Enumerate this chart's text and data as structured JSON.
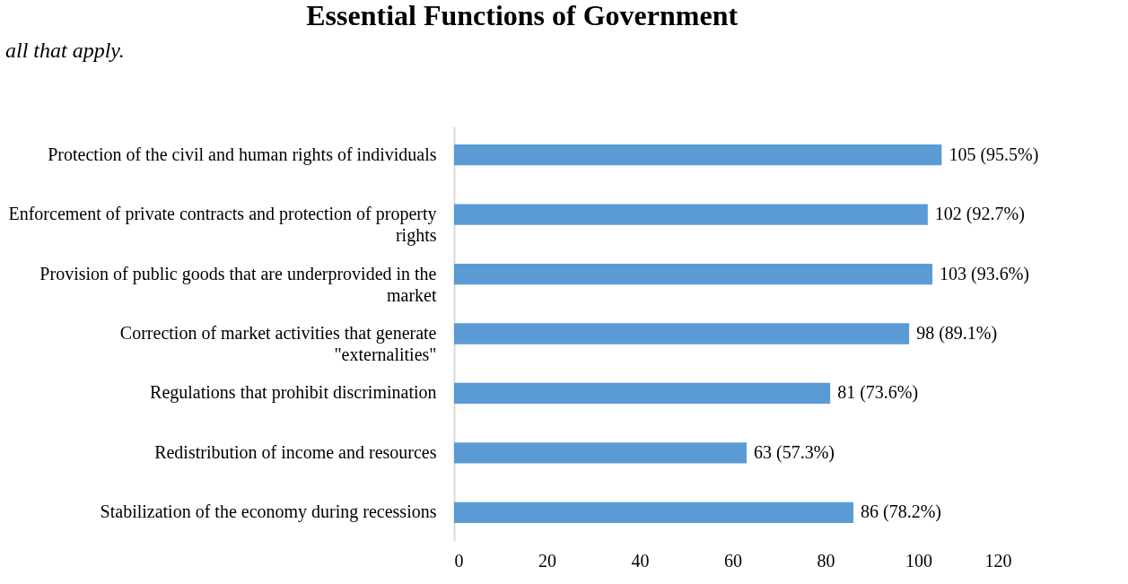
{
  "chart_data": {
    "type": "bar",
    "orientation": "horizontal",
    "title": "Essential Functions of Government",
    "annotations": [
      "all that apply."
    ],
    "categories": [
      "Protection of the civil and human rights of individuals",
      "Enforcement of private contracts and protection of property rights",
      "Provision of public goods that are underprovided in the market",
      "Correction of market activities that generate \"externalities\"",
      "Regulations that prohibit discrimination",
      "Redistribution of income and resources",
      "Stabilization of the economy during recessions"
    ],
    "values": [
      105,
      102,
      103,
      98,
      81,
      63,
      86
    ],
    "value_labels": [
      "105 (95.5%)",
      "102 (92.7%)",
      "103 (93.6%)",
      "98 (89.1%)",
      "81 (73.6%)",
      "63 (57.3%)",
      "86 (78.2%)"
    ],
    "color": "#5b9bd5",
    "xlim": [
      0,
      120
    ],
    "xticks": [
      0,
      20,
      40,
      60,
      80,
      100,
      120
    ],
    "grid": false
  }
}
